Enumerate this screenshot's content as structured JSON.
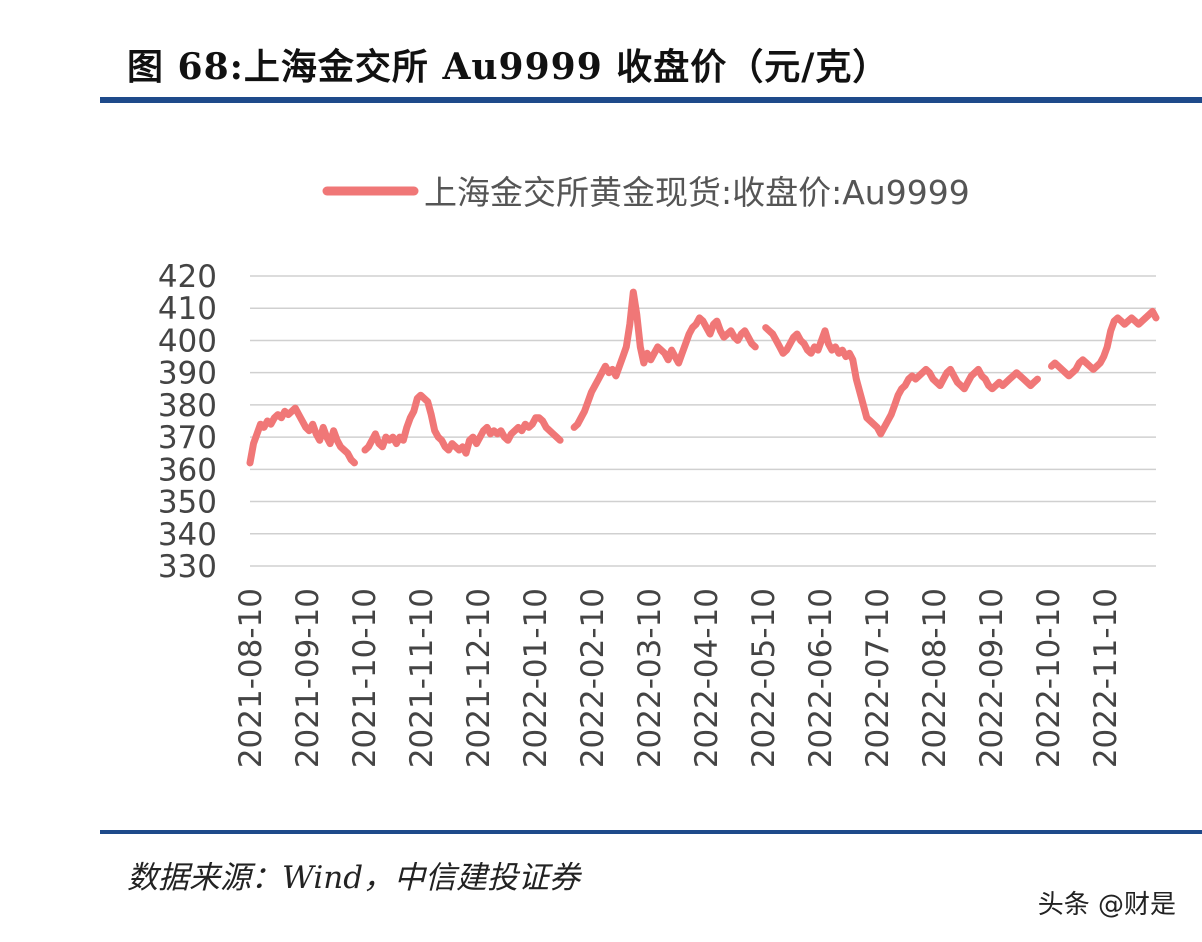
{
  "header": {
    "title": "图 68:上海金交所 Au9999 收盘价（元/克）"
  },
  "footer": {
    "source": "数据来源：Wind，中信建投证券",
    "watermark": "头条 @财是"
  },
  "colors": {
    "rule": "#1e4a8a",
    "line": "#f07777",
    "grid": "#d0d0d0",
    "axis_text": "#444444"
  },
  "chart_data": {
    "type": "line",
    "title": "",
    "xlabel": "",
    "ylabel": "",
    "ylim": [
      330,
      420
    ],
    "yticks": [
      420,
      410,
      400,
      390,
      380,
      370,
      360,
      350,
      340,
      330
    ],
    "xticks": [
      "2021-08-10",
      "2021-09-10",
      "2021-10-10",
      "2021-11-10",
      "2021-12-10",
      "2022-01-10",
      "2022-02-10",
      "2022-03-10",
      "2022-04-10",
      "2022-05-10",
      "2022-06-10",
      "2022-07-10",
      "2022-08-10",
      "2022-09-10",
      "2022-10-10",
      "2022-11-10"
    ],
    "grid": true,
    "legend": {
      "position": "top",
      "label": "上海金交所黄金现货:收盘价:Au9999"
    },
    "series": [
      {
        "name": "上海金交所黄金现货:收盘价:Au9999",
        "segments": [
          {
            "x": [
              0,
              2,
              4,
              6,
              8,
              10,
              12,
              14,
              16,
              18,
              20,
              22,
              24,
              26,
              28,
              30,
              32,
              34,
              36,
              38,
              40,
              42,
              44,
              46,
              48,
              50,
              52,
              54,
              56,
              58,
              60
            ],
            "y": [
              362,
              368,
              371,
              374,
              373,
              375,
              374,
              376,
              377,
              376,
              378,
              377,
              378,
              379,
              377,
              375,
              373,
              372,
              374,
              371,
              369,
              373,
              370,
              368,
              372,
              369,
              367,
              366,
              365,
              363,
              362
            ]
          },
          {
            "x": [
              66,
              68,
              70,
              72,
              74,
              76,
              78,
              80,
              82,
              84,
              86,
              88,
              90,
              92,
              94,
              96,
              98,
              100,
              102,
              104,
              106,
              108,
              110,
              112,
              114,
              116,
              118,
              120,
              122,
              124,
              126,
              128,
              130,
              132,
              134,
              136,
              138,
              140,
              142,
              144,
              146,
              148,
              150,
              152,
              154,
              156,
              158,
              160,
              162,
              164,
              166,
              168,
              170,
              172,
              174,
              176,
              178
            ],
            "y": [
              366,
              367,
              369,
              371,
              368,
              367,
              370,
              369,
              370,
              368,
              370,
              369,
              373,
              376,
              378,
              382,
              383,
              382,
              381,
              377,
              372,
              370,
              369,
              367,
              366,
              368,
              367,
              366,
              367,
              365,
              369,
              370,
              368,
              370,
              372,
              373,
              371,
              372,
              371,
              372,
              370,
              369,
              371,
              372,
              373,
              372,
              374,
              373,
              374,
              376,
              376,
              375,
              373,
              372,
              371,
              370,
              369
            ]
          },
          {
            "x": [
              186,
              188,
              190,
              192,
              194,
              196,
              198,
              200,
              202,
              204,
              206,
              208,
              210,
              212,
              214,
              216,
              218,
              220,
              222,
              224,
              226,
              228,
              230,
              232,
              234,
              236,
              238,
              240,
              242,
              244,
              246,
              248,
              250,
              252,
              254,
              256,
              258,
              260,
              262,
              264,
              266,
              268,
              270,
              272,
              274,
              276,
              278,
              280,
              282,
              284,
              286,
              288,
              290
            ],
            "y": [
              373,
              374,
              376,
              378,
              381,
              384,
              386,
              388,
              390,
              392,
              390,
              391,
              389,
              392,
              395,
              398,
              405,
              415,
              408,
              398,
              393,
              396,
              394,
              396,
              398,
              397,
              396,
              394,
              397,
              395,
              393,
              396,
              399,
              402,
              404,
              405,
              407,
              406,
              404,
              402,
              405,
              406,
              403,
              401,
              402,
              403,
              401,
              400,
              402,
              403,
              401,
              399,
              398
            ]
          },
          {
            "x": [
              296,
              298,
              300,
              302,
              304,
              306,
              308,
              310,
              312,
              314,
              316,
              318,
              320,
              322,
              324,
              326,
              328,
              330,
              332,
              334,
              336,
              338,
              340,
              342,
              344,
              346,
              348,
              350,
              352,
              354,
              356,
              358,
              360,
              362,
              364,
              366,
              368,
              370,
              372,
              374,
              376,
              378,
              380,
              382,
              384,
              386,
              388,
              390,
              392,
              394,
              396,
              398,
              400,
              402,
              404,
              406,
              408,
              410,
              412,
              414,
              416,
              418,
              420,
              422,
              424,
              426,
              428,
              430,
              432,
              434,
              436,
              438,
              440,
              442,
              444,
              446,
              448,
              450,
              452
            ],
            "y": [
              404,
              403,
              402,
              400,
              398,
              396,
              397,
              399,
              401,
              402,
              400,
              399,
              397,
              396,
              398,
              397,
              400,
              403,
              399,
              397,
              398,
              396,
              397,
              395,
              396,
              394,
              388,
              384,
              380,
              376,
              375,
              374,
              373,
              371,
              373,
              375,
              377,
              380,
              383,
              385,
              386,
              388,
              389,
              388,
              389,
              390,
              391,
              390,
              388,
              387,
              386,
              388,
              390,
              391,
              389,
              387,
              386,
              385,
              387,
              389,
              390,
              391,
              389,
              388,
              386,
              385,
              386,
              387,
              386,
              387,
              388,
              389,
              390,
              389,
              388,
              387,
              386,
              387,
              388
            ]
          },
          {
            "x": [
              460,
              462,
              464,
              466,
              468,
              470,
              472,
              474,
              476,
              478,
              480,
              482,
              484,
              486,
              488,
              490,
              492,
              494,
              496,
              498,
              500,
              502,
              504,
              506,
              508,
              510,
              512,
              514,
              516,
              518,
              520
            ],
            "y": [
              392,
              393,
              392,
              391,
              390,
              389,
              390,
              391,
              393,
              394,
              393,
              392,
              391,
              392,
              393,
              395,
              398,
              403,
              406,
              407,
              406,
              405,
              406,
              407,
              406,
              405,
              406,
              407,
              408,
              409,
              407
            ]
          }
        ]
      }
    ]
  }
}
